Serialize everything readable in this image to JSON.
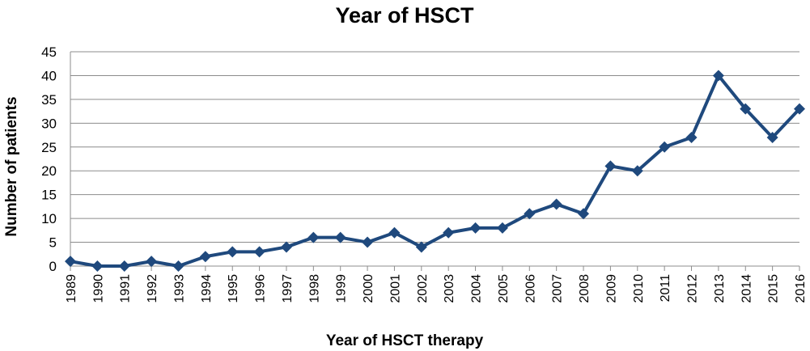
{
  "chart_data": {
    "type": "line",
    "title": "Year of HSCT",
    "xlabel": "Year of HSCT therapy",
    "ylabel": "Number of patients",
    "ylim": [
      0,
      45
    ],
    "yticks": [
      "0",
      "5",
      "10",
      "15",
      "20",
      "25",
      "30",
      "35",
      "40",
      "45"
    ],
    "grid": true,
    "categories": [
      "1989",
      "1990",
      "1991",
      "1992",
      "1993",
      "1994",
      "1995",
      "1996",
      "1997",
      "1998",
      "1999",
      "2000",
      "2001",
      "2002",
      "2003",
      "2004",
      "2005",
      "2006",
      "2007",
      "2008",
      "2009",
      "2010",
      "2011",
      "2012",
      "2013",
      "2014",
      "2015",
      "2016"
    ],
    "series": [
      {
        "values": [
          1,
          0,
          0,
          1,
          0,
          2,
          3,
          3,
          4,
          6,
          6,
          5,
          7,
          4,
          7,
          8,
          8,
          11,
          13,
          11,
          21,
          20,
          25,
          27,
          40,
          33,
          27,
          33
        ],
        "color": "#1f497d"
      }
    ]
  }
}
